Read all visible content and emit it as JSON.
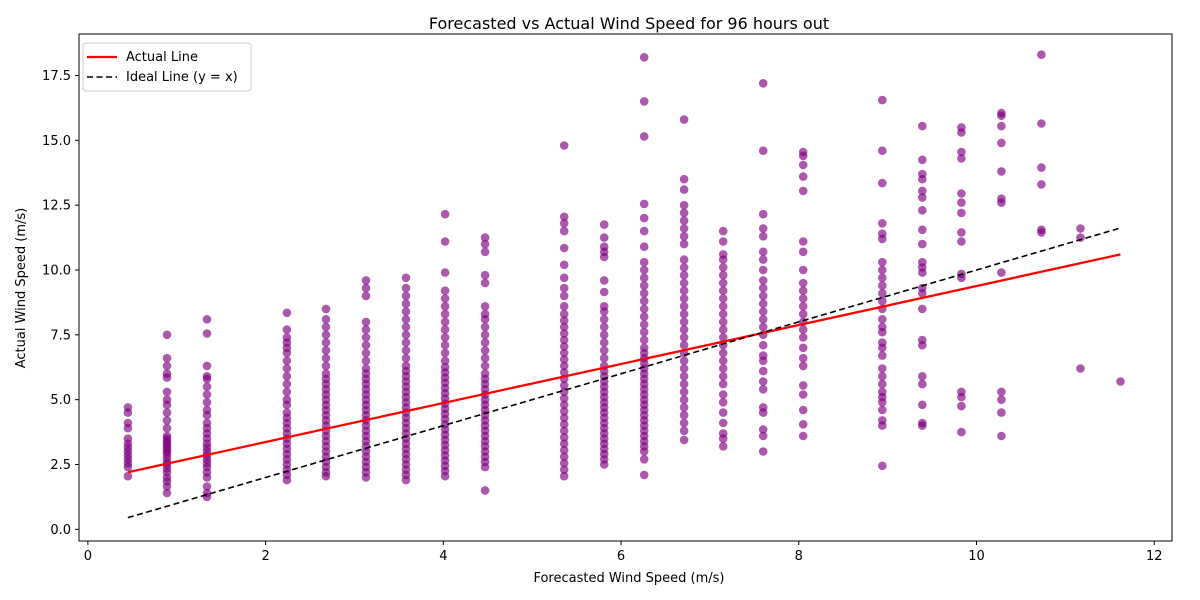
{
  "chart_data": {
    "type": "scatter",
    "title": "Forecasted vs Actual Wind Speed for 96 hours out",
    "xlabel": "Forecasted Wind Speed (m/s)",
    "ylabel": "Actual Wind Speed (m/s)",
    "xlim": [
      -0.1,
      12.2
    ],
    "ylim": [
      -0.45,
      19.1
    ],
    "xticks": [
      0,
      2,
      4,
      6,
      8,
      10,
      12
    ],
    "yticks": [
      0.0,
      2.5,
      5.0,
      7.5,
      10.0,
      12.5,
      15.0,
      17.5
    ],
    "xtick_labels": [
      "0",
      "2",
      "4",
      "6",
      "8",
      "10",
      "12"
    ],
    "ytick_labels": [
      "0.0",
      "2.5",
      "5.0",
      "7.5",
      "10.0",
      "12.5",
      "15.0",
      "17.5"
    ],
    "grid": false,
    "legend_position": "top-left",
    "legend": [
      {
        "label": "Actual Line",
        "style": "solid",
        "color": "#ff0000"
      },
      {
        "label": "Ideal Line (y = x)",
        "style": "dashed",
        "color": "#000000"
      }
    ],
    "colors": {
      "points": "#800080",
      "actual_line": "#ff0000",
      "ideal_line": "#000000"
    },
    "actual_line": {
      "x": [
        0.45,
        11.62
      ],
      "y": [
        2.2,
        10.6
      ]
    },
    "ideal_line": {
      "x": [
        0.45,
        11.62
      ],
      "y": [
        0.45,
        11.62
      ]
    },
    "series": [
      {
        "x": 0.45,
        "y": [
          2.05,
          2.4,
          2.55,
          2.7,
          2.85,
          3.0,
          3.15,
          3.3,
          3.5,
          3.9,
          4.1,
          4.5,
          4.7
        ]
      },
      {
        "x": 0.89,
        "y": [
          1.4,
          1.65,
          1.85,
          2.0,
          2.2,
          2.35,
          2.5,
          2.6,
          2.75,
          2.9,
          3.0,
          3.1,
          3.2,
          3.3,
          3.4,
          3.5,
          3.6,
          3.9,
          4.2,
          4.5,
          4.8,
          5.0,
          5.3,
          5.85,
          6.0,
          6.3,
          6.6,
          7.5
        ]
      },
      {
        "x": 1.34,
        "y": [
          1.25,
          1.4,
          1.65,
          2.0,
          2.2,
          2.4,
          2.55,
          2.7,
          2.85,
          3.0,
          3.15,
          3.3,
          3.5,
          3.7,
          3.9,
          4.1,
          4.4,
          4.6,
          4.9,
          5.2,
          5.5,
          5.8,
          5.9,
          6.3,
          7.55,
          8.1
        ]
      },
      {
        "x": 2.24,
        "y": [
          1.9,
          2.1,
          2.3,
          2.5,
          2.7,
          2.9,
          3.1,
          3.3,
          3.5,
          3.7,
          3.9,
          4.1,
          4.3,
          4.5,
          4.8,
          5.0,
          5.3,
          5.6,
          5.9,
          6.2,
          6.5,
          6.8,
          7.0,
          7.2,
          7.4,
          7.7,
          8.35
        ]
      },
      {
        "x": 2.68,
        "y": [
          2.05,
          2.2,
          2.4,
          2.6,
          2.8,
          3.0,
          3.2,
          3.4,
          3.6,
          3.8,
          4.0,
          4.2,
          4.4,
          4.6,
          4.8,
          5.0,
          5.2,
          5.4,
          5.6,
          5.8,
          6.0,
          6.3,
          6.6,
          6.9,
          7.2,
          7.5,
          7.8,
          8.1,
          8.5
        ]
      },
      {
        "x": 3.13,
        "y": [
          2.0,
          2.2,
          2.4,
          2.6,
          2.8,
          3.0,
          3.2,
          3.4,
          3.6,
          3.8,
          4.0,
          4.2,
          4.4,
          4.6,
          4.8,
          5.0,
          5.2,
          5.4,
          5.6,
          5.8,
          6.0,
          6.2,
          6.5,
          6.8,
          7.1,
          7.4,
          7.7,
          8.0,
          9.0,
          9.3,
          9.6
        ]
      },
      {
        "x": 3.58,
        "y": [
          1.9,
          2.1,
          2.3,
          2.5,
          2.7,
          2.9,
          3.1,
          3.3,
          3.5,
          3.7,
          3.9,
          4.1,
          4.3,
          4.5,
          4.7,
          4.9,
          5.1,
          5.3,
          5.5,
          5.7,
          5.9,
          6.1,
          6.3,
          6.6,
          6.9,
          7.2,
          7.5,
          7.8,
          8.1,
          8.4,
          8.7,
          9.0,
          9.3,
          9.7
        ]
      },
      {
        "x": 4.02,
        "y": [
          2.05,
          2.25,
          2.45,
          2.65,
          2.85,
          3.05,
          3.25,
          3.45,
          3.65,
          3.85,
          4.05,
          4.25,
          4.45,
          4.65,
          4.85,
          5.05,
          5.25,
          5.45,
          5.65,
          5.85,
          6.05,
          6.25,
          6.5,
          6.8,
          7.1,
          7.4,
          7.7,
          8.0,
          8.3,
          8.6,
          8.9,
          9.2,
          9.9,
          11.1,
          12.15
        ]
      },
      {
        "x": 4.47,
        "y": [
          1.5,
          2.4,
          2.6,
          2.8,
          3.0,
          3.2,
          3.4,
          3.6,
          3.8,
          4.0,
          4.2,
          4.4,
          4.6,
          4.8,
          5.0,
          5.2,
          5.4,
          5.6,
          5.8,
          6.0,
          6.3,
          6.6,
          6.9,
          7.2,
          7.5,
          7.8,
          8.1,
          8.3,
          8.6,
          9.5,
          9.8,
          10.7,
          11.0,
          11.25
        ]
      },
      {
        "x": 5.36,
        "y": [
          2.05,
          2.3,
          2.55,
          2.8,
          3.05,
          3.3,
          3.55,
          3.8,
          4.05,
          4.3,
          4.55,
          4.8,
          5.05,
          5.3,
          5.55,
          5.8,
          6.05,
          6.3,
          6.55,
          6.8,
          7.05,
          7.3,
          7.55,
          7.8,
          8.05,
          8.3,
          8.6,
          9.0,
          9.3,
          9.7,
          10.2,
          10.85,
          11.5,
          11.8,
          12.05,
          14.8
        ]
      },
      {
        "x": 5.81,
        "y": [
          2.5,
          2.7,
          2.9,
          3.1,
          3.3,
          3.5,
          3.7,
          3.9,
          4.1,
          4.3,
          4.5,
          4.7,
          4.9,
          5.1,
          5.3,
          5.5,
          5.7,
          5.9,
          6.1,
          6.3,
          6.6,
          6.9,
          7.2,
          7.5,
          7.8,
          8.1,
          8.4,
          8.6,
          9.15,
          9.6,
          10.5,
          10.7,
          10.9,
          11.25,
          11.75
        ]
      },
      {
        "x": 6.26,
        "y": [
          2.1,
          2.7,
          3.0,
          3.2,
          3.4,
          3.6,
          3.8,
          4.0,
          4.2,
          4.4,
          4.6,
          4.8,
          5.0,
          5.2,
          5.4,
          5.6,
          5.8,
          6.0,
          6.2,
          6.4,
          6.6,
          6.8,
          7.0,
          7.3,
          7.6,
          7.9,
          8.2,
          8.5,
          8.8,
          9.1,
          9.4,
          9.7,
          10.0,
          10.3,
          10.9,
          11.5,
          12.0,
          12.55,
          15.15,
          16.5,
          18.2
        ]
      },
      {
        "x": 6.71,
        "y": [
          3.45,
          3.8,
          4.1,
          4.4,
          4.7,
          5.0,
          5.3,
          5.6,
          5.9,
          6.2,
          6.5,
          6.8,
          7.1,
          7.4,
          7.7,
          8.0,
          8.3,
          8.6,
          8.9,
          9.2,
          9.5,
          9.8,
          10.1,
          10.4,
          11.0,
          11.3,
          11.6,
          11.9,
          12.2,
          12.5,
          13.1,
          13.5,
          15.8
        ]
      },
      {
        "x": 7.15,
        "y": [
          3.2,
          3.5,
          3.7,
          4.1,
          4.5,
          4.9,
          5.2,
          5.6,
          5.9,
          6.2,
          6.5,
          6.8,
          7.1,
          7.4,
          7.7,
          8.0,
          8.3,
          8.6,
          8.9,
          9.2,
          9.5,
          9.8,
          10.1,
          10.4,
          10.6,
          11.1,
          11.5
        ]
      },
      {
        "x": 7.6,
        "y": [
          3.0,
          3.6,
          3.85,
          4.5,
          4.7,
          5.4,
          5.7,
          6.1,
          6.5,
          6.7,
          7.1,
          7.5,
          7.8,
          8.1,
          8.4,
          8.7,
          9.0,
          9.3,
          9.6,
          10.0,
          10.4,
          10.7,
          11.3,
          11.6,
          12.15,
          14.6,
          17.2
        ]
      },
      {
        "x": 8.05,
        "y": [
          3.6,
          4.05,
          4.6,
          5.2,
          5.55,
          6.3,
          6.6,
          7.0,
          7.4,
          7.7,
          8.0,
          8.3,
          8.6,
          8.9,
          9.2,
          9.5,
          10.0,
          10.7,
          11.1,
          13.05,
          13.6,
          14.05,
          14.4,
          14.55
        ]
      },
      {
        "x": 8.94,
        "y": [
          2.45,
          4.0,
          4.2,
          4.6,
          4.9,
          5.1,
          5.3,
          5.6,
          5.9,
          6.2,
          6.7,
          7.0,
          7.2,
          7.6,
          7.8,
          8.1,
          8.5,
          8.8,
          9.1,
          9.4,
          9.7,
          10.0,
          10.3,
          11.2,
          11.4,
          11.8,
          13.35,
          14.6,
          16.55
        ]
      },
      {
        "x": 9.39,
        "y": [
          4.0,
          4.1,
          4.8,
          5.6,
          5.9,
          7.1,
          7.3,
          8.5,
          9.1,
          9.3,
          9.9,
          10.1,
          10.3,
          11.0,
          11.55,
          12.3,
          12.8,
          13.05,
          13.5,
          13.7,
          14.25,
          15.55
        ]
      },
      {
        "x": 9.83,
        "y": [
          3.75,
          4.75,
          5.1,
          5.3,
          9.7,
          9.85,
          11.1,
          11.45,
          12.2,
          12.6,
          12.95,
          14.3,
          14.55,
          15.3,
          15.5
        ]
      },
      {
        "x": 10.28,
        "y": [
          3.6,
          4.5,
          5.0,
          5.3,
          9.9,
          12.6,
          12.75,
          13.8,
          14.9,
          15.55,
          15.95,
          16.05
        ]
      },
      {
        "x": 10.73,
        "y": [
          11.45,
          11.55,
          13.3,
          13.95,
          15.65,
          18.3
        ]
      },
      {
        "x": 11.17,
        "y": [
          6.2,
          11.25,
          11.6
        ]
      },
      {
        "x": 11.62,
        "y": [
          5.7
        ]
      }
    ]
  }
}
